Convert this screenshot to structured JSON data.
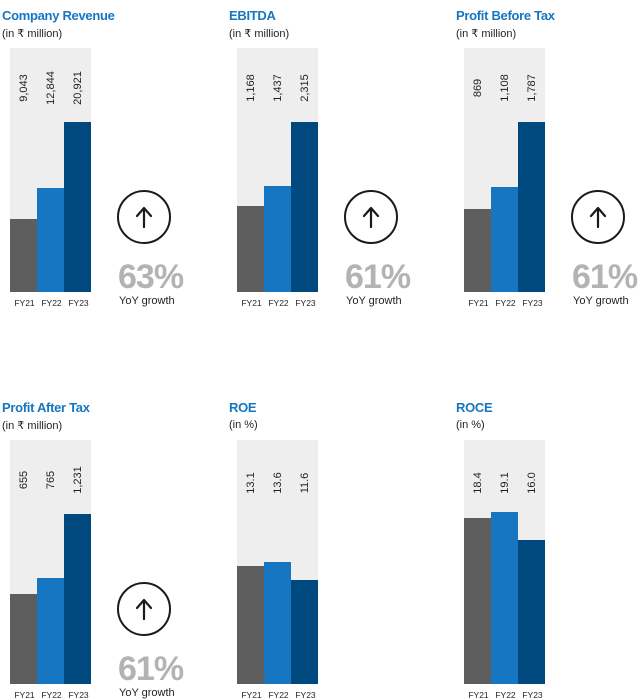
{
  "colors": {
    "fy21": "#5e5e5e",
    "fy22": "#1676c2",
    "fy23": "#00497f",
    "background_bar": "#eeeeee",
    "title": "#1676c2",
    "growth_text": "#b3b3b3"
  },
  "chart_data": [
    {
      "type": "bar",
      "title": "Company Revenue",
      "subtitle": "(in ₹ million)",
      "categories": [
        "FY21",
        "FY22",
        "FY23"
      ],
      "values": [
        9043,
        12844,
        20921
      ],
      "value_labels": [
        "9,043",
        "12,844",
        "20,921"
      ],
      "growth": {
        "value": "63%",
        "label": "YoY growth",
        "icon": "arrow-up-icon"
      }
    },
    {
      "type": "bar",
      "title": "EBITDA",
      "subtitle": "(in ₹ million)",
      "categories": [
        "FY21",
        "FY22",
        "FY23"
      ],
      "values": [
        1168,
        1437,
        2315
      ],
      "value_labels": [
        "1,168",
        "1,437",
        "2,315"
      ],
      "growth": {
        "value": "61%",
        "label": "YoY growth",
        "icon": "arrow-up-icon"
      }
    },
    {
      "type": "bar",
      "title": "Profit Before Tax",
      "subtitle": "(in ₹ million)",
      "categories": [
        "FY21",
        "FY22",
        "FY23"
      ],
      "values": [
        869,
        1108,
        1787
      ],
      "value_labels": [
        "869",
        "1,108",
        "1,787"
      ],
      "growth": {
        "value": "61%",
        "label": "YoY growth",
        "icon": "arrow-up-icon"
      }
    },
    {
      "type": "bar",
      "title": "Profit After Tax",
      "subtitle": "(in ₹ million)",
      "categories": [
        "FY21",
        "FY22",
        "FY23"
      ],
      "values": [
        655,
        765,
        1231
      ],
      "value_labels": [
        "655",
        "765",
        "1,231"
      ],
      "growth": {
        "value": "61%",
        "label": "YoY growth",
        "icon": "arrow-up-icon"
      }
    },
    {
      "type": "bar",
      "title": "ROE",
      "subtitle": "(in %)",
      "categories": [
        "FY21",
        "FY22",
        "FY23"
      ],
      "values": [
        13.1,
        13.6,
        11.6
      ],
      "value_labels": [
        "13.1",
        "13.6",
        "11.6"
      ]
    },
    {
      "type": "bar",
      "title": "ROCE",
      "subtitle": "(in %)",
      "categories": [
        "FY21",
        "FY22",
        "FY23"
      ],
      "values": [
        18.4,
        19.1,
        16.0
      ],
      "value_labels": [
        "18.4",
        "19.1",
        "16.0"
      ]
    }
  ]
}
